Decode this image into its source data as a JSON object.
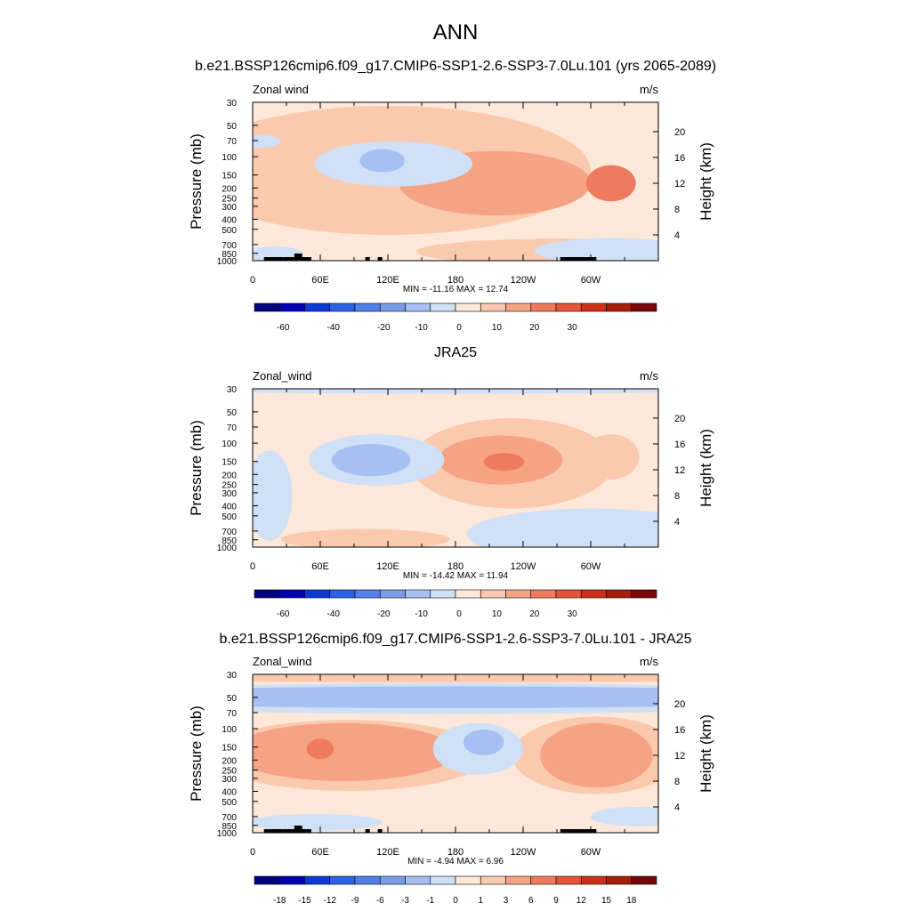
{
  "figure": {
    "title": "ANN",
    "colors": {
      "full": [
        "#00007f",
        "#0000b2",
        "#0d39d9",
        "#2b62e6",
        "#537fe8",
        "#7b9de9",
        "#a6c0f2",
        "#cfe0f7",
        "#fde8d9",
        "#fbcaae",
        "#f6a385",
        "#ef7b5e",
        "#e55338",
        "#cc3118",
        "#a81e0c",
        "#7a0707"
      ],
      "diff": [
        "#00007f",
        "#0000b2",
        "#0d39d9",
        "#2b62e6",
        "#537fe8",
        "#7b9de9",
        "#a6c0f2",
        "#cfe0f7",
        "#fde8d9",
        "#fbcaae",
        "#f6a385",
        "#ef7b5e",
        "#e55338",
        "#cc3118",
        "#a81e0c",
        "#7a0707"
      ]
    }
  },
  "chart_data": [
    {
      "type": "heatmap",
      "title": "b.e21.BSSP126cmip6.f09_g17.CMIP6-SSP1-2.6-SSP3-7.0Lu.101 (yrs 2065-2089)",
      "left_label": "Zonal wind",
      "units": "m/s",
      "ylabel": "Pressure (mb)",
      "ylabel_right": "Height (km)",
      "x_ticks": [
        "0",
        "60E",
        "120E",
        "180",
        "120W",
        "60W"
      ],
      "y_ticks": [
        "30",
        "50",
        "70",
        "100",
        "150",
        "200",
        "250",
        "300",
        "400",
        "500",
        "700",
        "850",
        "1000"
      ],
      "y2_ticks": [
        "20",
        "16",
        "12",
        "8",
        "4"
      ],
      "stats": "MIN = -11.16  MAX =  12.74",
      "colorbar_labels": [
        "-60",
        "-40",
        "-20",
        "-10",
        "0",
        "10",
        "20",
        "30"
      ],
      "value_range": [
        -11.16,
        12.74
      ],
      "zero_fill": "#fde8d9",
      "features": [
        {
          "level": 1,
          "cx": 120,
          "cy": 14,
          "rx": 180,
          "ry": 10
        },
        {
          "level": 2,
          "cx": 215,
          "cy": 12,
          "rx": 85,
          "ry": 5
        },
        {
          "level": 3,
          "cx": 318,
          "cy": 12,
          "rx": 22,
          "ry": 2.8
        },
        {
          "level": 1,
          "cx": 270,
          "cy": 1.4,
          "rx": 125,
          "ry": 2
        },
        {
          "level": 1,
          "cx": 25,
          "cy": 11,
          "rx": 18,
          "ry": 4
        },
        {
          "level": 1,
          "cx": 50,
          "cy": 13,
          "rx": 20,
          "ry": 3
        },
        {
          "level": -1,
          "cx": 125,
          "cy": 15,
          "rx": 70,
          "ry": 3.5
        },
        {
          "level": -2,
          "cx": 115,
          "cy": 15.5,
          "rx": 20,
          "ry": 1.8
        },
        {
          "level": -1,
          "cx": 320,
          "cy": 1.5,
          "rx": 70,
          "ry": 2
        },
        {
          "level": -1,
          "cx": 20,
          "cy": 1,
          "rx": 25,
          "ry": 1.2
        },
        {
          "level": -1,
          "cx": 5,
          "cy": 18.5,
          "rx": 20,
          "ry": 1
        }
      ],
      "topography": [
        [
          10,
          27
        ],
        [
          27,
          38
        ],
        [
          33,
          37
        ],
        [
          37,
          52
        ],
        [
          100,
          104
        ],
        [
          111,
          115
        ],
        [
          273,
          305
        ]
      ]
    },
    {
      "type": "heatmap",
      "title": "JRA25",
      "left_label": "Zonal_wind",
      "units": "m/s",
      "ylabel": "Pressure (mb)",
      "ylabel_right": "Height (km)",
      "x_ticks": [
        "0",
        "60E",
        "120E",
        "180",
        "120W",
        "60W"
      ],
      "y_ticks": [
        "30",
        "50",
        "70",
        "100",
        "150",
        "200",
        "250",
        "300",
        "400",
        "500",
        "700",
        "850",
        "1000"
      ],
      "y2_ticks": [
        "20",
        "16",
        "12",
        "8",
        "4"
      ],
      "stats": "MIN = -14.42  MAX =  11.94",
      "colorbar_labels": [
        "-60",
        "-40",
        "-20",
        "-10",
        "0",
        "10",
        "20",
        "30"
      ],
      "value_range": [
        -14.42,
        11.94
      ],
      "zero_fill": "#fde8d9",
      "features": [
        {
          "level": 1,
          "cx": 230,
          "cy": 13,
          "rx": 90,
          "ry": 7
        },
        {
          "level": 2,
          "cx": 220,
          "cy": 13.5,
          "rx": 55,
          "ry": 3.8
        },
        {
          "level": 3,
          "cx": 223,
          "cy": 13.2,
          "rx": 18,
          "ry": 1.4
        },
        {
          "level": 1,
          "cx": 318,
          "cy": 14,
          "rx": 25,
          "ry": 3.5
        },
        {
          "level": 1,
          "cx": 100,
          "cy": 1.2,
          "rx": 75,
          "ry": 1.6
        },
        {
          "level": -1,
          "cx": 110,
          "cy": 13.5,
          "rx": 60,
          "ry": 4
        },
        {
          "level": -2,
          "cx": 105,
          "cy": 13.5,
          "rx": 35,
          "ry": 2.5
        },
        {
          "level": -1,
          "cx": 15,
          "cy": 8,
          "rx": 20,
          "ry": 7
        },
        {
          "level": -1,
          "cx": 300,
          "cy": 2,
          "rx": 110,
          "ry": 4
        },
        {
          "level": -1,
          "cx": 180,
          "cy": 25,
          "rx": 360,
          "ry": 1.2
        }
      ],
      "topography": []
    },
    {
      "type": "heatmap",
      "title": "b.e21.BSSP126cmip6.f09_g17.CMIP6-SSP1-2.6-SSP3-7.0Lu.101 - JRA25",
      "left_label": "Zonal_wind",
      "units": "m/s",
      "ylabel": "Pressure (mb)",
      "ylabel_right": "Height (km)",
      "x_ticks": [
        "0",
        "60E",
        "120E",
        "180",
        "120W",
        "60W"
      ],
      "y_ticks": [
        "30",
        "50",
        "70",
        "100",
        "150",
        "200",
        "250",
        "300",
        "400",
        "500",
        "700",
        "850",
        "1000"
      ],
      "y2_ticks": [
        "20",
        "16",
        "12",
        "8",
        "4"
      ],
      "stats": "MIN =  -4.94  MAX =   6.96",
      "colorbar_labels": [
        "-18",
        "-15",
        "-12",
        "-9",
        "-6",
        "-3",
        "-1",
        "0",
        "1",
        "3",
        "6",
        "9",
        "12",
        "15",
        "18"
      ],
      "value_range": [
        -4.94,
        6.96
      ],
      "zero_fill": "#fde8d9",
      "features": [
        {
          "level": -1,
          "cx": 180,
          "cy": 20.8,
          "rx": 360,
          "ry": 2.4
        },
        {
          "level": -2,
          "cx": 180,
          "cy": 21,
          "rx": 340,
          "ry": 1.7
        },
        {
          "level": 1,
          "cx": 180,
          "cy": 24.2,
          "rx": 360,
          "ry": 0.9
        },
        {
          "level": 1,
          "cx": 85,
          "cy": 12,
          "rx": 125,
          "ry": 5.5
        },
        {
          "level": 2,
          "cx": 80,
          "cy": 12.5,
          "rx": 100,
          "ry": 4.5
        },
        {
          "level": 3,
          "cx": 60,
          "cy": 13,
          "rx": 12,
          "ry": 1.6
        },
        {
          "level": 1,
          "cx": 305,
          "cy": 12,
          "rx": 75,
          "ry": 6
        },
        {
          "level": 2,
          "cx": 305,
          "cy": 12,
          "rx": 50,
          "ry": 5
        },
        {
          "level": -1,
          "cx": 200,
          "cy": 13,
          "rx": 40,
          "ry": 4
        },
        {
          "level": -2,
          "cx": 205,
          "cy": 14,
          "rx": 18,
          "ry": 2
        },
        {
          "level": -1,
          "cx": 55,
          "cy": 1.6,
          "rx": 60,
          "ry": 1.3
        },
        {
          "level": -1,
          "cx": 340,
          "cy": 2.5,
          "rx": 40,
          "ry": 1.5
        }
      ],
      "topography": [
        [
          10,
          27
        ],
        [
          27,
          38
        ],
        [
          33,
          37
        ],
        [
          37,
          52
        ],
        [
          100,
          104
        ],
        [
          111,
          115
        ],
        [
          273,
          305
        ]
      ]
    }
  ]
}
